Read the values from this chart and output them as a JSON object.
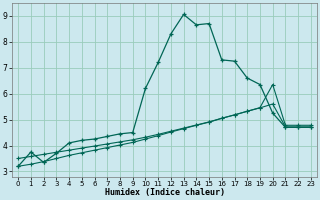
{
  "xlabel": "Humidex (Indice chaleur)",
  "bg_color": "#cce8ee",
  "grid_color": "#99ccbb",
  "line_color": "#006655",
  "xlim": [
    -0.5,
    23.5
  ],
  "ylim": [
    2.8,
    9.5
  ],
  "xticks": [
    0,
    1,
    2,
    3,
    4,
    5,
    6,
    7,
    8,
    9,
    10,
    11,
    12,
    13,
    14,
    15,
    16,
    17,
    18,
    19,
    20,
    21,
    22,
    23
  ],
  "yticks": [
    3,
    4,
    5,
    6,
    7,
    8,
    9
  ],
  "series1_x": [
    0,
    1,
    2,
    3,
    4,
    5,
    6,
    7,
    8,
    9,
    10,
    11,
    12,
    13,
    14,
    15,
    16,
    17,
    18,
    19,
    20,
    21,
    22,
    23
  ],
  "series1_y": [
    3.2,
    3.75,
    3.35,
    3.7,
    4.1,
    4.2,
    4.25,
    4.35,
    4.45,
    4.5,
    6.2,
    7.2,
    8.3,
    9.05,
    8.65,
    8.7,
    7.3,
    7.25,
    6.6,
    6.35,
    5.25,
    4.7,
    4.7,
    4.7
  ],
  "series2_x": [
    0,
    1,
    2,
    3,
    4,
    5,
    6,
    7,
    8,
    9,
    10,
    11,
    12,
    13,
    14,
    15,
    16,
    17,
    18,
    19,
    20,
    21,
    22,
    23
  ],
  "series2_y": [
    3.2,
    3.28,
    3.38,
    3.5,
    3.62,
    3.72,
    3.82,
    3.92,
    4.02,
    4.12,
    4.25,
    4.38,
    4.52,
    4.65,
    4.78,
    4.9,
    5.05,
    5.18,
    5.32,
    5.45,
    5.6,
    4.72,
    4.72,
    4.72
  ],
  "series3_x": [
    0,
    1,
    2,
    3,
    4,
    5,
    6,
    7,
    8,
    9,
    10,
    11,
    12,
    13,
    14,
    15,
    16,
    17,
    18,
    19,
    20,
    21,
    22,
    23
  ],
  "series3_y": [
    3.5,
    3.58,
    3.66,
    3.74,
    3.82,
    3.9,
    3.98,
    4.06,
    4.14,
    4.22,
    4.32,
    4.43,
    4.55,
    4.67,
    4.79,
    4.91,
    5.05,
    5.18,
    5.32,
    5.46,
    6.35,
    4.78,
    4.78,
    4.78
  ]
}
